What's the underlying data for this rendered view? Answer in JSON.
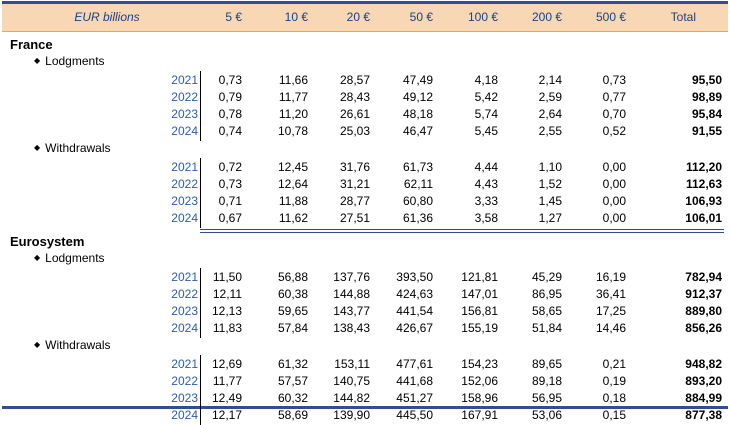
{
  "header": {
    "units": "EUR billions",
    "columns": [
      "5 €",
      "10 €",
      "20 €",
      "50 €",
      "100 €",
      "200 €",
      "500 €",
      "Total"
    ]
  },
  "sections": [
    {
      "name": "France",
      "groups": [
        {
          "label": "Lodgments",
          "rows": [
            {
              "year": "2021",
              "values": [
                "0,73",
                "11,66",
                "28,57",
                "47,49",
                "4,18",
                "2,14",
                "0,73",
                "95,50"
              ]
            },
            {
              "year": "2022",
              "values": [
                "0,79",
                "11,77",
                "28,43",
                "49,12",
                "5,42",
                "2,59",
                "0,77",
                "98,89"
              ]
            },
            {
              "year": "2023",
              "values": [
                "0,78",
                "11,20",
                "26,61",
                "48,18",
                "5,74",
                "2,64",
                "0,70",
                "95,84"
              ]
            },
            {
              "year": "2024",
              "values": [
                "0,74",
                "10,78",
                "25,03",
                "46,47",
                "5,45",
                "2,55",
                "0,52",
                "91,55"
              ]
            }
          ]
        },
        {
          "label": "Withdrawals",
          "rows": [
            {
              "year": "2021",
              "values": [
                "0,72",
                "12,45",
                "31,76",
                "61,73",
                "4,44",
                "1,10",
                "0,00",
                "112,20"
              ]
            },
            {
              "year": "2022",
              "values": [
                "0,73",
                "12,64",
                "31,21",
                "62,11",
                "4,43",
                "1,52",
                "0,00",
                "112,63"
              ]
            },
            {
              "year": "2023",
              "values": [
                "0,71",
                "11,88",
                "28,77",
                "60,80",
                "3,33",
                "1,45",
                "0,00",
                "106,93"
              ]
            },
            {
              "year": "2024",
              "values": [
                "0,67",
                "11,62",
                "27,51",
                "61,36",
                "3,58",
                "1,27",
                "0,00",
                "106,01"
              ]
            }
          ]
        }
      ]
    },
    {
      "name": "Eurosystem",
      "groups": [
        {
          "label": "Lodgments",
          "rows": [
            {
              "year": "2021",
              "values": [
                "11,50",
                "56,88",
                "137,76",
                "393,50",
                "121,81",
                "45,29",
                "16,19",
                "782,94"
              ]
            },
            {
              "year": "2022",
              "values": [
                "12,11",
                "60,38",
                "144,88",
                "424,63",
                "147,01",
                "86,95",
                "36,41",
                "912,37"
              ]
            },
            {
              "year": "2023",
              "values": [
                "12,13",
                "59,65",
                "143,77",
                "441,54",
                "156,81",
                "58,65",
                "17,25",
                "889,80"
              ]
            },
            {
              "year": "2024",
              "values": [
                "11,83",
                "57,84",
                "138,43",
                "426,67",
                "155,19",
                "51,84",
                "14,46",
                "856,26"
              ]
            }
          ]
        },
        {
          "label": "Withdrawals",
          "rows": [
            {
              "year": "2021",
              "values": [
                "12,69",
                "61,32",
                "153,11",
                "477,61",
                "154,23",
                "89,65",
                "0,21",
                "948,82"
              ]
            },
            {
              "year": "2022",
              "values": [
                "11,77",
                "57,57",
                "140,75",
                "441,68",
                "152,06",
                "89,18",
                "0,19",
                "893,20"
              ]
            },
            {
              "year": "2023",
              "values": [
                "12,49",
                "60,32",
                "144,82",
                "451,27",
                "158,96",
                "56,95",
                "0,18",
                "884,99"
              ]
            },
            {
              "year": "2024",
              "values": [
                "12,17",
                "58,69",
                "139,90",
                "445,50",
                "167,91",
                "53,06",
                "0,15",
                "877,38"
              ]
            }
          ]
        }
      ]
    }
  ]
}
